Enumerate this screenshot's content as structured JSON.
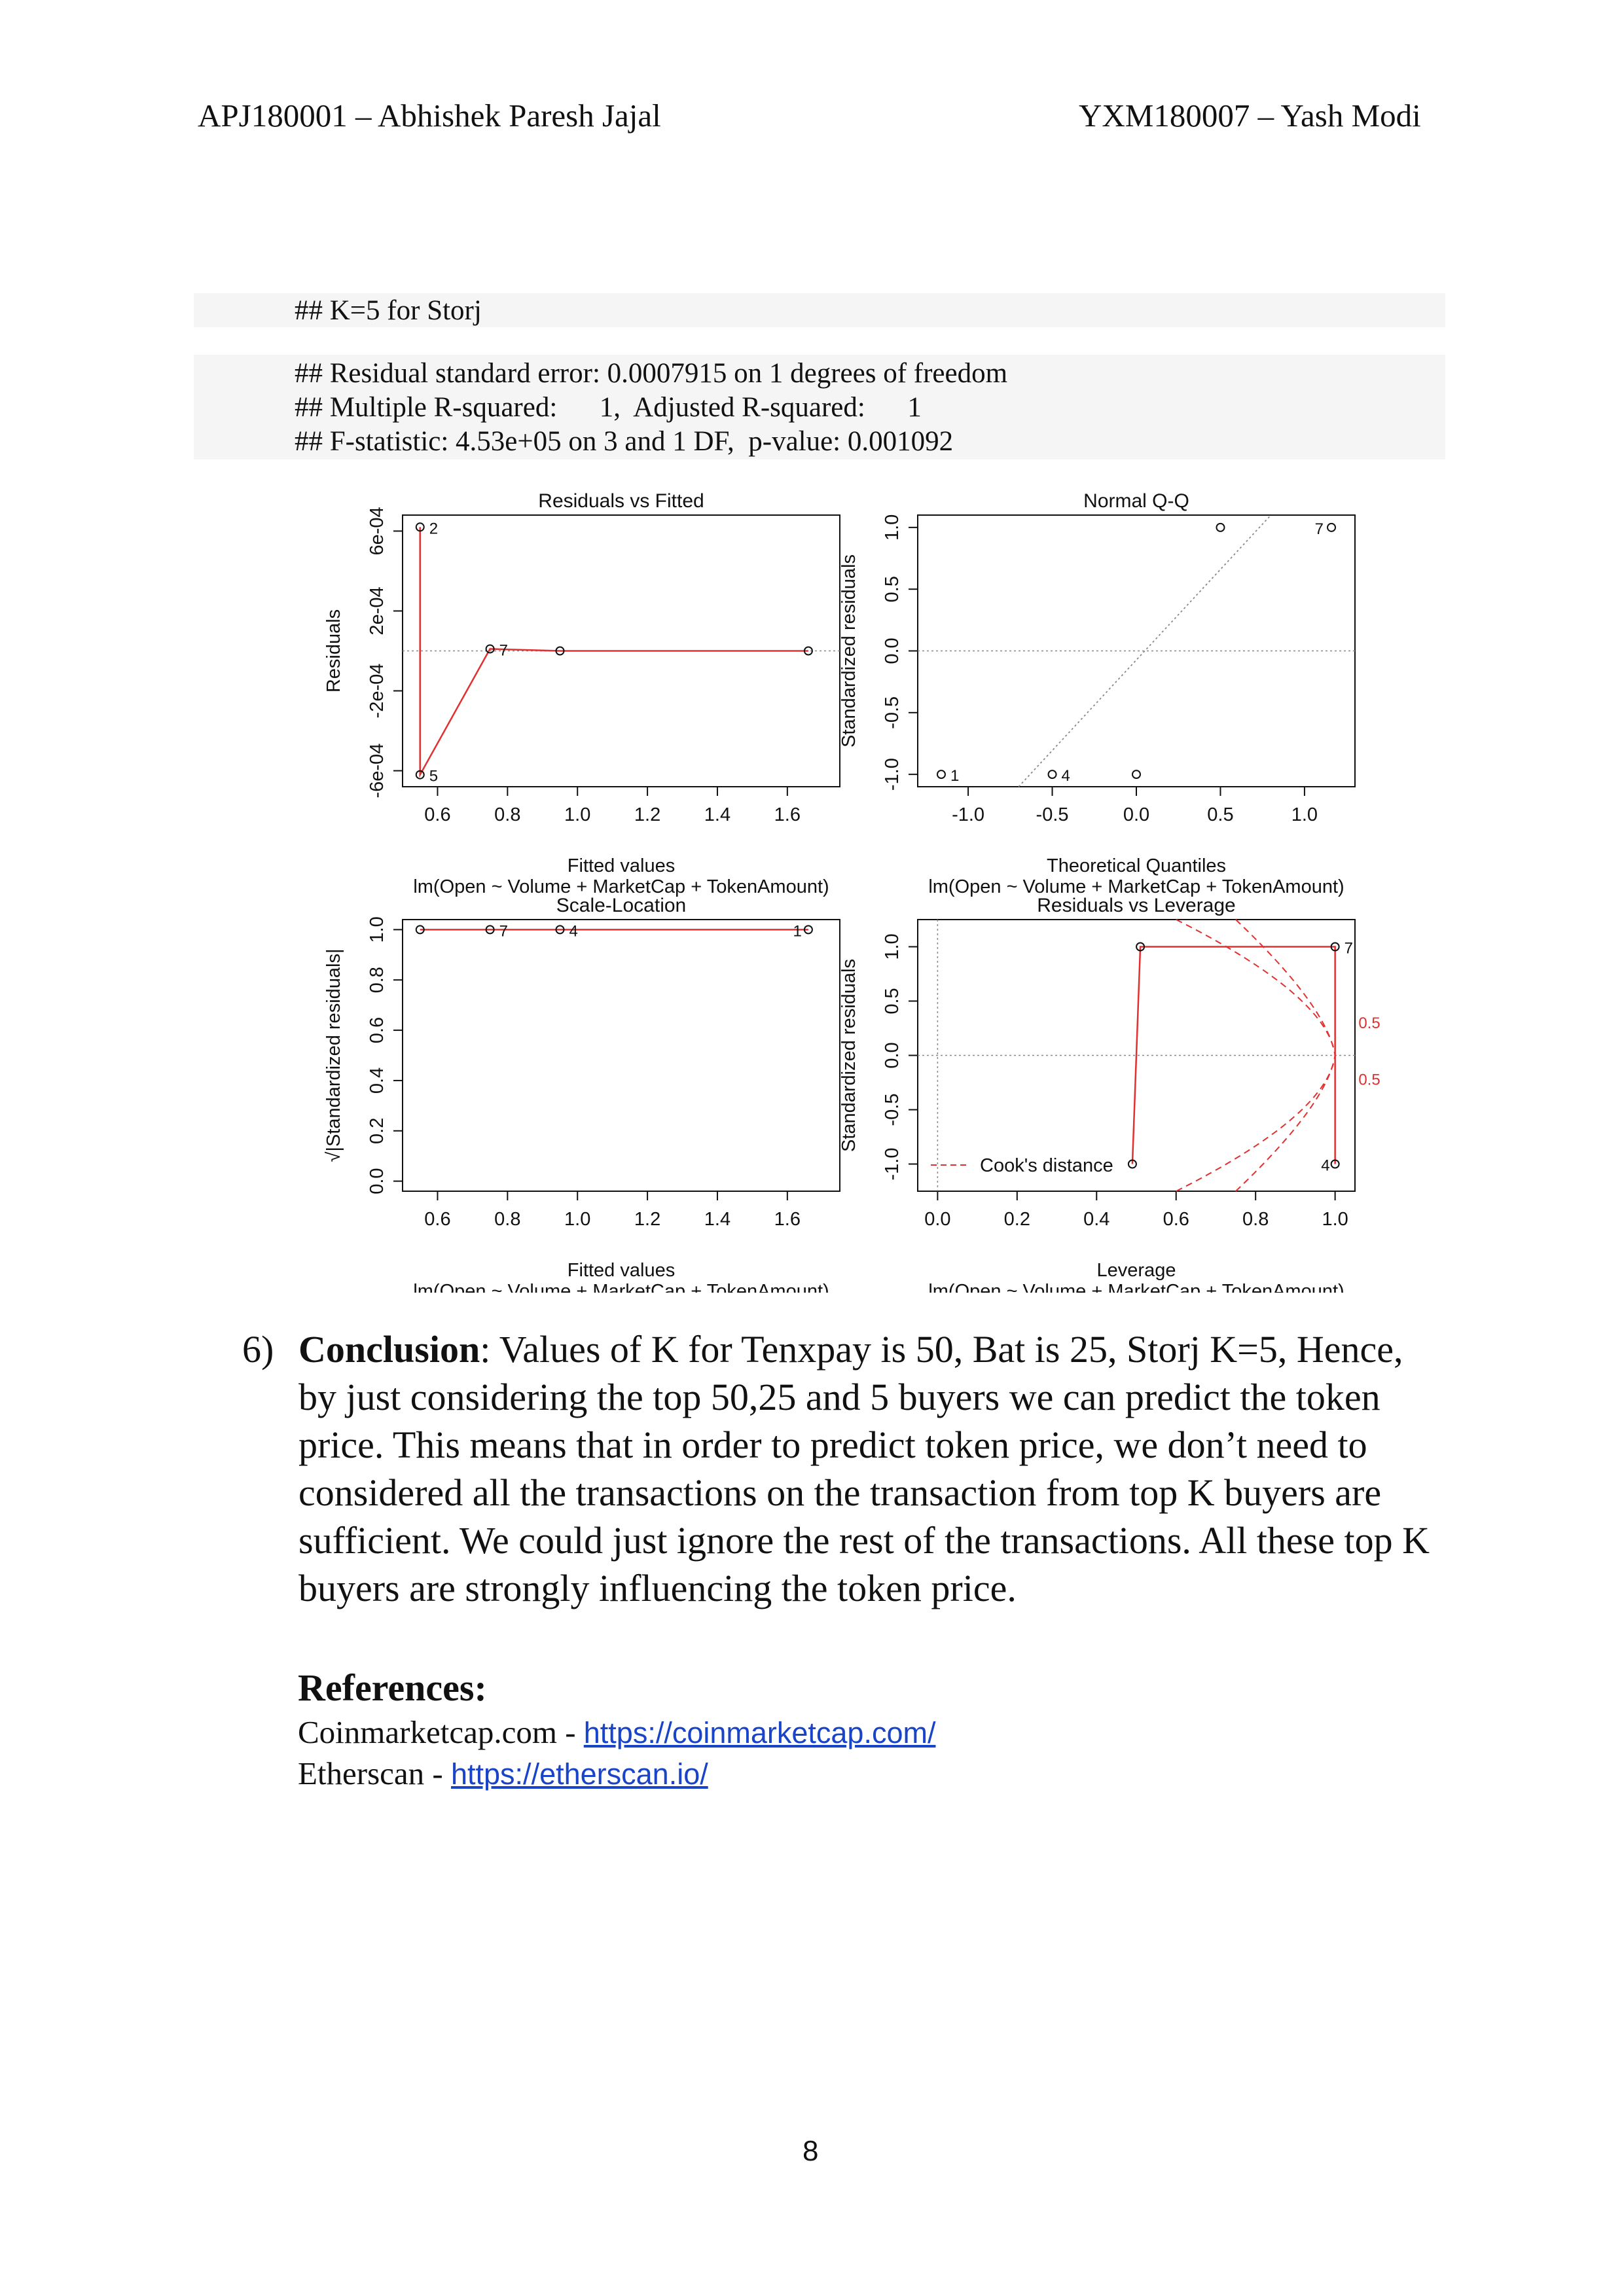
{
  "header": {
    "left": "APJ180001 – Abhishek Paresh Jajal",
    "right": "YXM180007 – Yash Modi"
  },
  "code": {
    "title": "## K=5 for Storj",
    "lines": [
      "## Residual standard error: 0.0007915 on 1 degrees of freedom",
      "## Multiple R-squared:      1,  Adjusted R-squared:      1",
      "## F-statistic: 4.53e+05 on 3 and 1 DF,  p-value: 0.001092"
    ]
  },
  "chart_data": [
    {
      "type": "scatter",
      "title": "Residuals vs Fitted",
      "xlabel": "Fitted values",
      "subtitle": "lm(Open ~ Volume + MarketCap + TokenAmount)",
      "ylabel": "Residuals",
      "xticks": [
        "0.6",
        "0.8",
        "1.0",
        "1.2",
        "1.4",
        "1.6"
      ],
      "yticks": [
        "-6e-04",
        "-2e-04",
        "2e-04",
        "6e-04"
      ],
      "xlim": [
        0.5,
        1.75
      ],
      "ylim": [
        -0.00068,
        0.00068
      ],
      "points": [
        {
          "x": 0.55,
          "y": 0.00062,
          "label": "2"
        },
        {
          "x": 0.55,
          "y": -0.00062,
          "label": "5"
        },
        {
          "x": 0.75,
          "y": 1e-05,
          "label": "7"
        },
        {
          "x": 0.95,
          "y": 0.0,
          "label": ""
        },
        {
          "x": 1.66,
          "y": 0.0,
          "label": ""
        }
      ],
      "smooth": [
        [
          0.55,
          0.00062
        ],
        [
          0.55,
          -0.00062
        ],
        [
          0.75,
          1e-05
        ],
        [
          0.95,
          0.0
        ],
        [
          1.66,
          0.0
        ]
      ]
    },
    {
      "type": "scatter",
      "title": "Normal Q-Q",
      "xlabel": "Theoretical Quantiles",
      "subtitle": "lm(Open ~ Volume + MarketCap + TokenAmount)",
      "ylabel": "Standardized residuals",
      "xticks": [
        "-1.0",
        "-0.5",
        "0.0",
        "0.5",
        "1.0"
      ],
      "yticks": [
        "-1.0",
        "-0.5",
        "0.0",
        "0.5",
        "1.0"
      ],
      "xlim": [
        -1.3,
        1.3
      ],
      "ylim": [
        -1.1,
        1.1
      ],
      "points": [
        {
          "x": -1.16,
          "y": -1.0,
          "label": "1"
        },
        {
          "x": -0.5,
          "y": -1.0,
          "label": "4"
        },
        {
          "x": 0.0,
          "y": -1.0,
          "label": ""
        },
        {
          "x": 0.5,
          "y": 1.0,
          "label": ""
        },
        {
          "x": 1.16,
          "y": 1.0,
          "label": "7"
        }
      ],
      "refline": [
        [
          -0.7,
          -1.1
        ],
        [
          0.8,
          1.2
        ]
      ]
    },
    {
      "type": "scatter",
      "title": "Scale-Location",
      "xlabel": "Fitted values",
      "subtitle": "lm(Open ~ Volume + MarketCap + TokenAmount)",
      "ylabel": "√|Standardized residuals|",
      "xticks": [
        "0.6",
        "0.8",
        "1.0",
        "1.2",
        "1.4",
        "1.6"
      ],
      "yticks": [
        "0.0",
        "0.2",
        "0.4",
        "0.6",
        "0.8",
        "1.0"
      ],
      "xlim": [
        0.5,
        1.75
      ],
      "ylim": [
        -0.04,
        1.04
      ],
      "points": [
        {
          "x": 0.55,
          "y": 1.0,
          "label": ""
        },
        {
          "x": 0.75,
          "y": 1.0,
          "label": "7"
        },
        {
          "x": 0.95,
          "y": 1.0,
          "label": "4"
        },
        {
          "x": 1.66,
          "y": 1.0,
          "label": "1"
        }
      ],
      "smooth": [
        [
          0.55,
          1.0
        ],
        [
          1.66,
          1.0
        ]
      ]
    },
    {
      "type": "scatter",
      "title": "Residuals vs Leverage",
      "xlabel": "Leverage",
      "subtitle": "lm(Open ~ Volume + MarketCap + TokenAmount)",
      "ylabel": "Standardized residuals",
      "xticks": [
        "0.0",
        "0.2",
        "0.4",
        "0.6",
        "0.8",
        "1.0"
      ],
      "yticks": [
        "-1.0",
        "-0.5",
        "0.0",
        "0.5",
        "1.0"
      ],
      "xlim": [
        -0.05,
        1.05
      ],
      "ylim": [
        -1.25,
        1.25
      ],
      "legend": "Cook's distance",
      "contour_labels": [
        "0.5",
        "0.5"
      ],
      "points": [
        {
          "x": 0.49,
          "y": -1.0,
          "label": ""
        },
        {
          "x": 0.51,
          "y": 1.0,
          "label": ""
        },
        {
          "x": 1.0,
          "y": 1.0,
          "label": "7"
        },
        {
          "x": 1.0,
          "y": -1.0,
          "label": "4"
        }
      ],
      "smooth": [
        [
          0.49,
          -1.0
        ],
        [
          0.51,
          1.0
        ],
        [
          1.0,
          1.0
        ],
        [
          1.0,
          -1.0
        ]
      ]
    }
  ],
  "conclusion": {
    "number": "6)",
    "label": "Conclusion",
    "text": ": Values of K for Tenxpay is 50, Bat is 25, Storj K=5, Hence, by just considering the top 50,25 and 5 buyers we can predict the token price. This means that in order to predict token price, we don’t need to considered all the transactions on the transaction from top K buyers are sufficient. We could just ignore the rest of the transactions. All these top K buyers are strongly influencing the token price."
  },
  "references": {
    "title": "References:",
    "items": [
      {
        "name": "Coinmarketcap.com - ",
        "url": "https://coinmarketcap.com/"
      },
      {
        "name": "Etherscan - ",
        "url": "https://etherscan.io/"
      }
    ]
  },
  "page_number": "8"
}
